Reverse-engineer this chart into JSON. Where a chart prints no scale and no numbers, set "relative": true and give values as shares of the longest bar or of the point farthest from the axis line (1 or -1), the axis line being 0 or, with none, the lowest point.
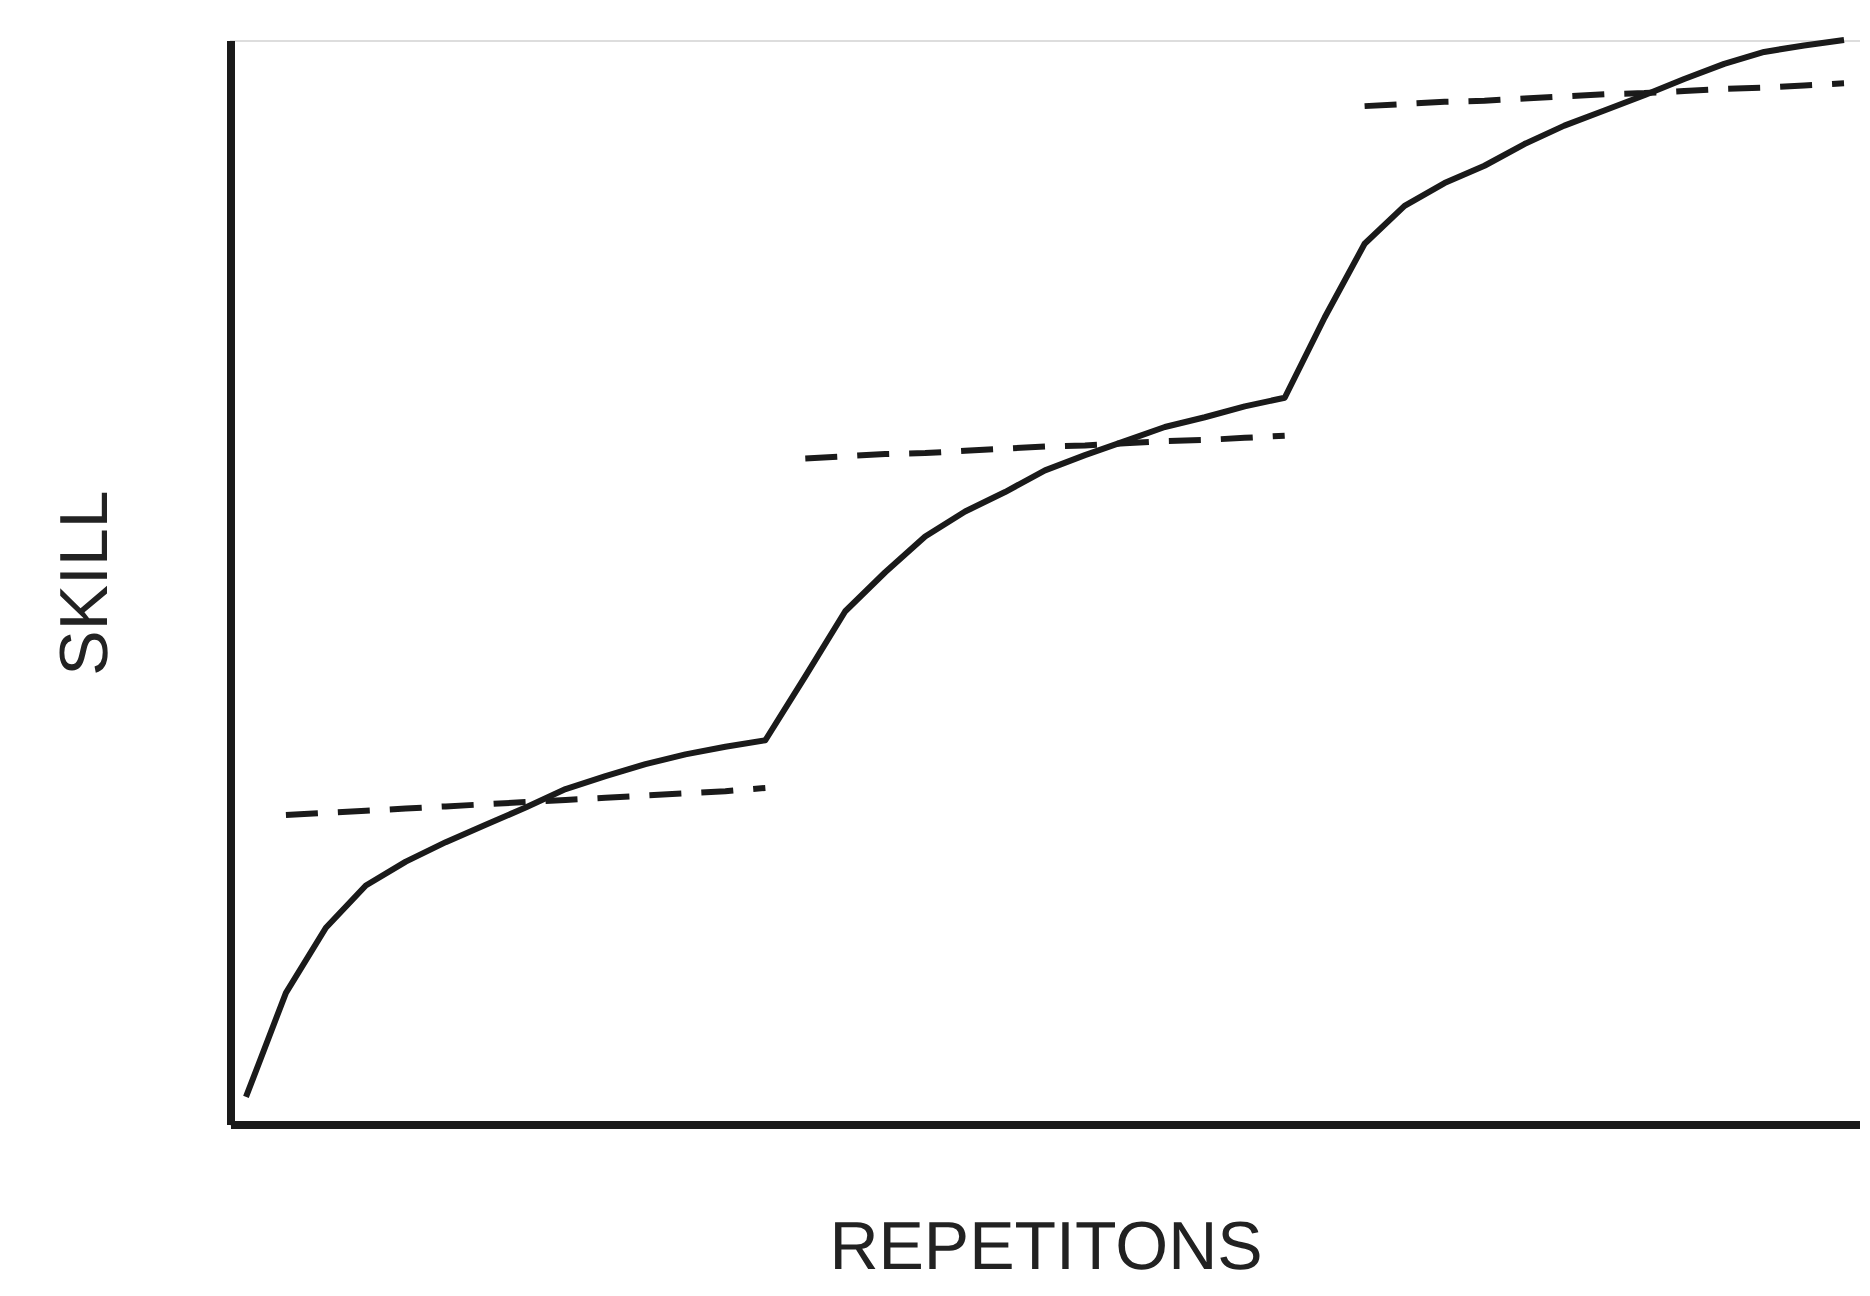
{
  "chart_data": {
    "type": "line",
    "relative": true,
    "xlabel": "REPETITONS",
    "ylabel": "SKILL",
    "grid": false,
    "tick_labels": false,
    "marker": "none",
    "categories": [
      null,
      null,
      null,
      null,
      null,
      null,
      null,
      null,
      null,
      null,
      null,
      null,
      null,
      null,
      null,
      null,
      null,
      null,
      null,
      null,
      null,
      null,
      null,
      null,
      null,
      null,
      null,
      null,
      null,
      null,
      null,
      null,
      null,
      null,
      null,
      null,
      null,
      null,
      null,
      null,
      null
    ],
    "series": [
      {
        "color": "#1a1a1a",
        "line_style": "solid",
        "values": [
          0.025,
          0.121,
          0.181,
          0.22,
          0.242,
          0.26,
          0.276,
          0.292,
          0.309,
          0.321,
          0.332,
          0.341,
          0.348,
          0.354,
          0.413,
          0.473,
          0.509,
          0.542,
          0.565,
          0.583,
          0.603,
          0.617,
          0.63,
          0.643,
          0.652,
          0.662,
          0.67,
          0.744,
          0.812,
          0.847,
          0.868,
          0.884,
          0.904,
          0.921,
          0.935,
          0.949,
          0.964,
          0.978,
          0.989,
          0.995,
          1.0
        ]
      },
      {
        "color": "#1a1a1a",
        "line_style": "dashed",
        "values": [
          null,
          0.285,
          0.287,
          0.289,
          0.291,
          0.293,
          0.295,
          0.297,
          0.299,
          0.301,
          0.303,
          0.305,
          0.307,
          0.31,
          null,
          null,
          null,
          null,
          null,
          null,
          null,
          null,
          null,
          null,
          null,
          null,
          null,
          null,
          null,
          null,
          null,
          null,
          null,
          null,
          null,
          null,
          null,
          null,
          null,
          null,
          null
        ]
      },
      {
        "color": "#1a1a1a",
        "line_style": "dashed",
        "values": [
          null,
          null,
          null,
          null,
          null,
          null,
          null,
          null,
          null,
          null,
          null,
          null,
          null,
          null,
          0.614,
          0.616,
          0.618,
          0.619,
          0.621,
          0.623,
          0.625,
          0.626,
          0.628,
          0.63,
          0.631,
          0.633,
          0.635,
          null,
          null,
          null,
          null,
          null,
          null,
          null,
          null,
          null,
          null,
          null,
          null,
          null,
          null
        ]
      },
      {
        "color": "#1a1a1a",
        "line_style": "dashed",
        "values": [
          null,
          null,
          null,
          null,
          null,
          null,
          null,
          null,
          null,
          null,
          null,
          null,
          null,
          null,
          null,
          null,
          null,
          null,
          null,
          null,
          null,
          null,
          null,
          null,
          null,
          null,
          null,
          null,
          0.939,
          0.941,
          0.943,
          0.944,
          0.946,
          0.948,
          0.95,
          0.951,
          0.953,
          0.955,
          0.956,
          0.958,
          0.96
        ]
      }
    ]
  }
}
